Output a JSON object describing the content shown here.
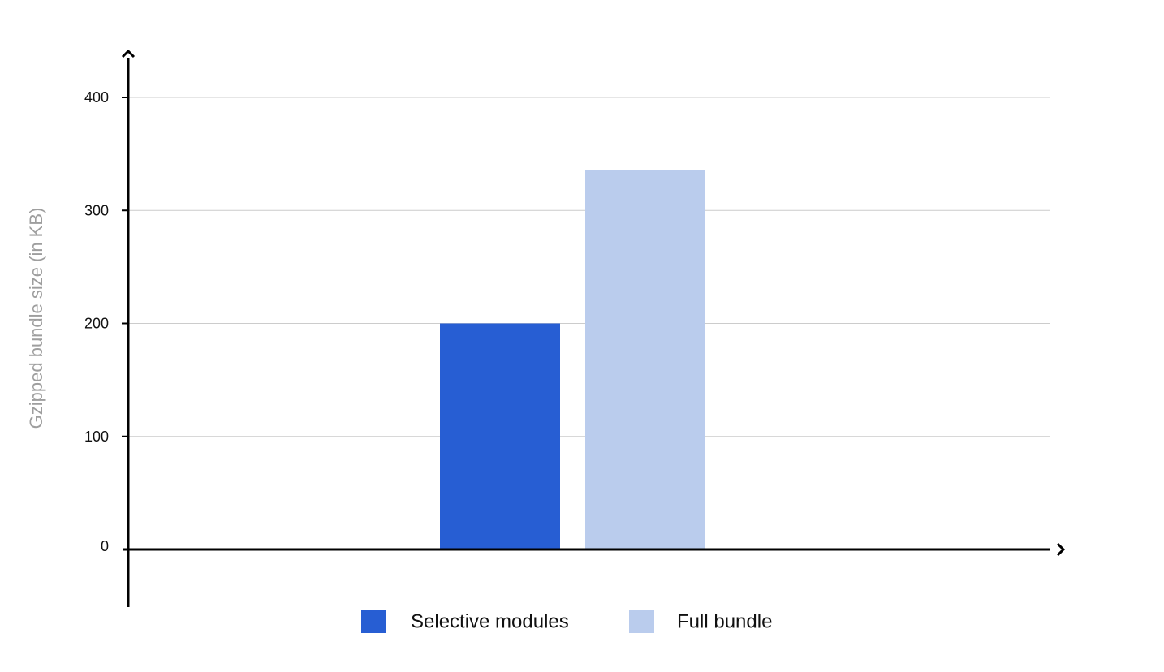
{
  "chart_data": {
    "type": "bar",
    "title": "",
    "xlabel": "",
    "ylabel": "Gzipped bundle size (in KB)",
    "ylim": [
      0,
      400
    ],
    "yticks": [
      "0",
      "100",
      "200",
      "300",
      "400"
    ],
    "categories": [
      ""
    ],
    "grid": true,
    "legend_position": "bottom",
    "series": [
      {
        "name": "Selective modules",
        "color": "#275ed3",
        "values": [
          200
        ]
      },
      {
        "name": "Full bundle",
        "color": "#bacced",
        "values": [
          336
        ]
      }
    ]
  }
}
